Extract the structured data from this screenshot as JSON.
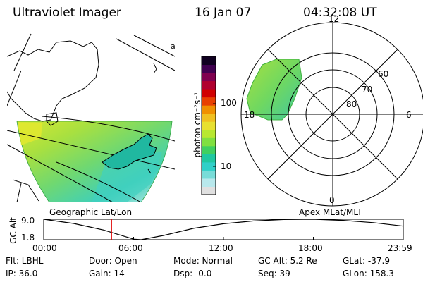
{
  "header": {
    "title": "Ultraviolet Imager",
    "date": "16 Jan 07",
    "time": "04:32:08 UT"
  },
  "colorbar": {
    "unit_label": "photon cm⁻²s⁻¹",
    "ticks": [
      "100",
      "10"
    ],
    "colors": [
      "#e0e0e0",
      "#b8e8ec",
      "#78dcd8",
      "#30d0c8",
      "#20c8a0",
      "#40d060",
      "#80e040",
      "#b8e830",
      "#e8e030",
      "#f0c020",
      "#f09000",
      "#e84000",
      "#d00000",
      "#b00030",
      "#800050",
      "#400050",
      "#100020"
    ]
  },
  "geo_panel": {
    "label": "Geographic Lat/Lon",
    "side_glyph": "a"
  },
  "polar_panel": {
    "label": "Apex MLat/MLT",
    "mlt_labels": [
      "12",
      "18",
      "6",
      "0"
    ],
    "mlat_labels": [
      "60",
      "70",
      "80"
    ]
  },
  "altitude_plot": {
    "ylabel": "GC Alt",
    "yticks": [
      "9.0",
      "1.8"
    ],
    "xticks": [
      "00:00",
      "06:00",
      "12:00",
      "18:00",
      "23:59"
    ],
    "xlim_hours": [
      0,
      24
    ],
    "ylim_re": [
      1.8,
      9.0
    ],
    "current_hour": 4.53,
    "curve_hours": [
      0,
      2,
      4,
      6,
      6.5,
      8,
      10,
      12,
      14,
      16,
      18,
      20,
      22,
      24
    ],
    "curve_alt_re": [
      9.0,
      7.5,
      5.2,
      2.0,
      1.8,
      3.3,
      5.8,
      7.4,
      8.4,
      8.9,
      9.0,
      8.6,
      7.8,
      6.6
    ]
  },
  "info": {
    "flt": "Flt: LBHL",
    "ip": "IP: 36.0",
    "door": "Door: Open",
    "gain": "Gain: 14",
    "mode": "Mode: Normal",
    "dsp": "Dsp:   -0.0",
    "gcalt": "GC Alt: 5.2 Re",
    "seq": "Seq: 39",
    "glat": "GLat: -37.9",
    "glon": "GLon: 158.3"
  }
}
